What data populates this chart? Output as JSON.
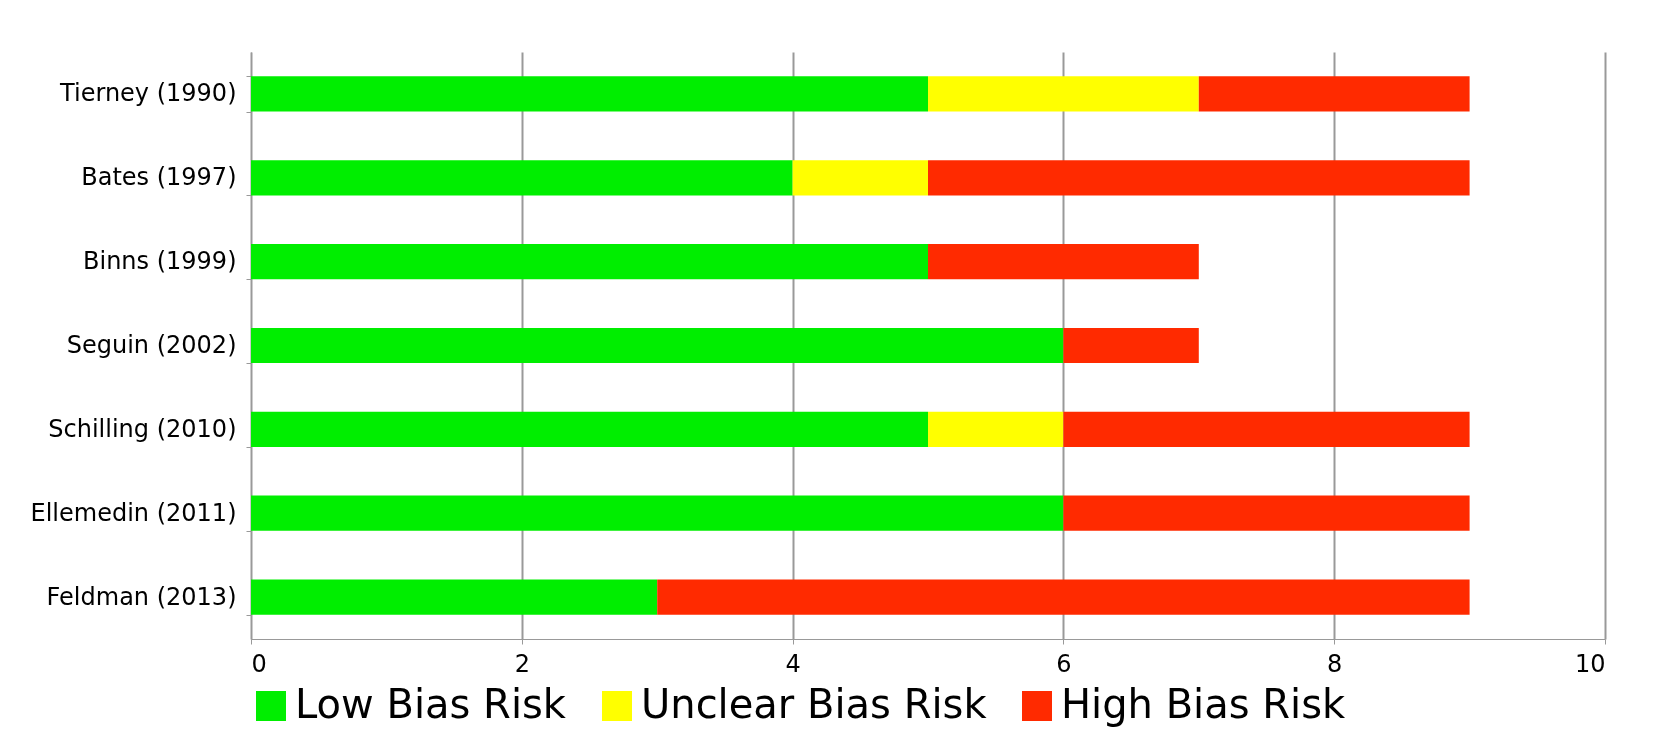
{
  "chart_data": {
    "type": "bar",
    "orientation": "horizontal",
    "stacked": true,
    "categories": [
      "Tierney (1990)",
      "Bates   (1997)",
      "Binns   (1999)",
      "Seguin (2002)",
      "Schilling (2010)",
      "Ellemedin (2011)",
      "Feldman (2013)"
    ],
    "series": [
      {
        "name": "Low Bias Risk",
        "color": "#00ee00",
        "values": [
          5,
          4,
          5,
          6,
          5,
          6,
          3
        ]
      },
      {
        "name": "Unclear Bias Risk",
        "color": "#ffff00",
        "values": [
          2,
          1,
          0,
          0,
          1,
          0,
          0
        ]
      },
      {
        "name": "High Bias Risk",
        "color": "#ff2a00",
        "values": [
          2,
          4,
          2,
          1,
          3,
          3,
          6
        ]
      }
    ],
    "xlim": [
      0,
      10
    ],
    "xticks": [
      0,
      2,
      4,
      6,
      8,
      10
    ],
    "grid": "x",
    "legend": "bottom"
  }
}
